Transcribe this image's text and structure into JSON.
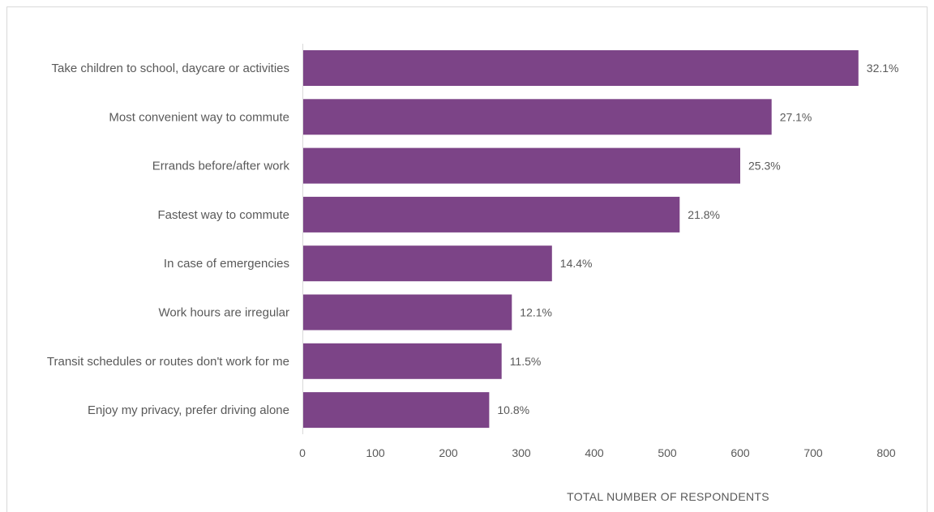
{
  "chart_data": {
    "type": "bar",
    "orientation": "horizontal",
    "title": "",
    "xlabel": "TOTAL NUMBER OF RESPONDENTS",
    "ylabel": "",
    "categories": [
      "Take children to school, daycare or activities",
      "Most convenient way to commute",
      "Errands before/after work",
      "Fastest way to commute",
      "In case of emergencies",
      "Work hours are irregular",
      "Transit schedules or routes don't work for me",
      "Enjoy my privacy, prefer driving alone"
    ],
    "values": [
      762,
      643,
      600,
      517,
      342,
      287,
      273,
      256
    ],
    "data_labels": [
      "32.1%",
      "27.1%",
      "25.3%",
      "21.8%",
      "14.4%",
      "12.1%",
      "11.5%",
      "10.8%"
    ],
    "xlim": [
      0,
      800
    ],
    "xticks": [
      0,
      100,
      200,
      300,
      400,
      500,
      600,
      700,
      800
    ],
    "xtick_labels": [
      "0",
      "100",
      "200",
      "300",
      "400",
      "500",
      "600",
      "700",
      "800"
    ],
    "grid": false,
    "legend": "none",
    "bar_color": "#7c4487"
  }
}
